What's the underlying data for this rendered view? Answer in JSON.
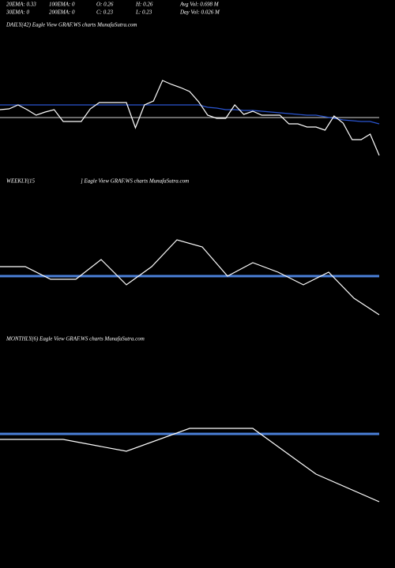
{
  "header": {
    "rows": [
      [
        "20EMA: 0.33",
        "100EMA: 0",
        "O: 0.26",
        "H: 0.26",
        "Avg Vol: 0.698  M"
      ],
      [
        "30EMA: 0",
        "200EMA: 0",
        "C: 0.23",
        "L: 0.23",
        "Day Vol: 0.026  M"
      ]
    ]
  },
  "chart_data": [
    {
      "type": "line",
      "title": "DAILY(42) Eagle   View  GRAF.WS charts MunafaSutra.com",
      "ylim": [
        0,
        180
      ],
      "series": [
        {
          "color": "#aaaaaa",
          "values": [
            71,
            71,
            71,
            71,
            71,
            71,
            71,
            71,
            71,
            71,
            71,
            71,
            71,
            71,
            71,
            71,
            71,
            71,
            71,
            71,
            71,
            71,
            71,
            71,
            71,
            71,
            71,
            71,
            71,
            71,
            71,
            71,
            71,
            71,
            71,
            71,
            71,
            71,
            71,
            71,
            71,
            71,
            71
          ]
        },
        {
          "color": "#2a55d0",
          "values": [
            87,
            87,
            87,
            87,
            87,
            87,
            87,
            87,
            87,
            87,
            87,
            87,
            87,
            87,
            87,
            87,
            87,
            87,
            87,
            87,
            87,
            87,
            87,
            84,
            83,
            81,
            81,
            80,
            80,
            79,
            78,
            77,
            76,
            75,
            74,
            74,
            72,
            70,
            68,
            67,
            66,
            66,
            63
          ]
        },
        {
          "color": "#ffffff",
          "values": [
            81,
            82,
            87,
            81,
            74,
            78,
            81,
            66,
            66,
            66,
            82,
            90,
            90,
            90,
            90,
            58,
            87,
            92,
            118,
            113,
            109,
            104,
            91,
            74,
            70,
            70,
            87,
            75,
            79,
            74,
            74,
            74,
            63,
            63,
            59,
            59,
            55,
            73,
            64,
            43,
            43,
            50,
            23
          ]
        }
      ]
    },
    {
      "type": "line",
      "title": "WEEKLY(15",
      "subtitle": "] Eagle   View  GRAF.WS charts MunafaSutra.com",
      "ylim": [
        0,
        180
      ],
      "series": [
        {
          "color": "#4a7fd8",
          "width": 3,
          "values": [
            70,
            70,
            70,
            70,
            70,
            70,
            70,
            70,
            70,
            70,
            70,
            70,
            70,
            70,
            70,
            70
          ]
        },
        {
          "color": "#ffffff",
          "values": [
            82,
            82,
            66,
            66,
            91,
            59,
            82,
            116,
            107,
            70,
            87,
            75,
            59,
            75,
            42,
            21
          ]
        }
      ]
    },
    {
      "type": "line",
      "title": "MONTHLY(6) Eagle   View  GRAF.WS charts MunafaSutra.com",
      "ylim": [
        0,
        260
      ],
      "series": [
        {
          "color": "#4a7fd8",
          "width": 3,
          "values": [
            150,
            150,
            150,
            150,
            150,
            150,
            150
          ]
        },
        {
          "color": "#ffffff",
          "values": [
            143,
            143,
            128,
            157,
            157,
            99,
            64
          ]
        }
      ]
    }
  ]
}
